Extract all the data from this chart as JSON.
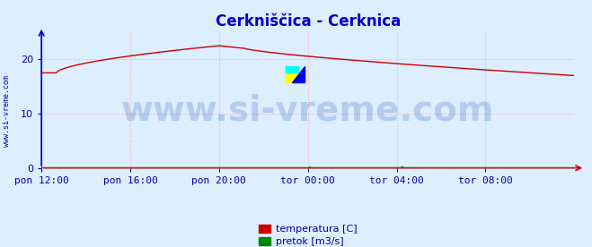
{
  "title": "Cerkniščica - Cerknica",
  "title_color": "#0000cc",
  "title_fontsize": 12,
  "bg_color": "#ddeeff",
  "plot_bg_color": "#ddeeff",
  "grid_color": "#ffaaaa",
  "grid_linestyle": ":",
  "xlim": [
    0,
    288
  ],
  "ylim": [
    0,
    25
  ],
  "yticks": [
    0,
    10,
    20
  ],
  "xtick_labels": [
    "pon 12:00",
    "pon 16:00",
    "pon 20:00",
    "tor 00:00",
    "tor 04:00",
    "tor 08:00"
  ],
  "xtick_positions": [
    0,
    48,
    96,
    144,
    192,
    240
  ],
  "tick_color": "#0000aa",
  "tick_fontsize": 8,
  "temp_color": "#cc0000",
  "flow_color": "#008800",
  "watermark": "www.si-vreme.com",
  "watermark_color": "#2255bb",
  "watermark_alpha": 0.22,
  "watermark_fontsize": 28,
  "legend_labels": [
    "temperatura [C]",
    "pretok [m3/s]"
  ],
  "legend_colors": [
    "#cc0000",
    "#008800"
  ],
  "ylabel_left": "www.si-vreme.com",
  "axis_color": "#cc0000",
  "left_axis_color": "#0000cc"
}
